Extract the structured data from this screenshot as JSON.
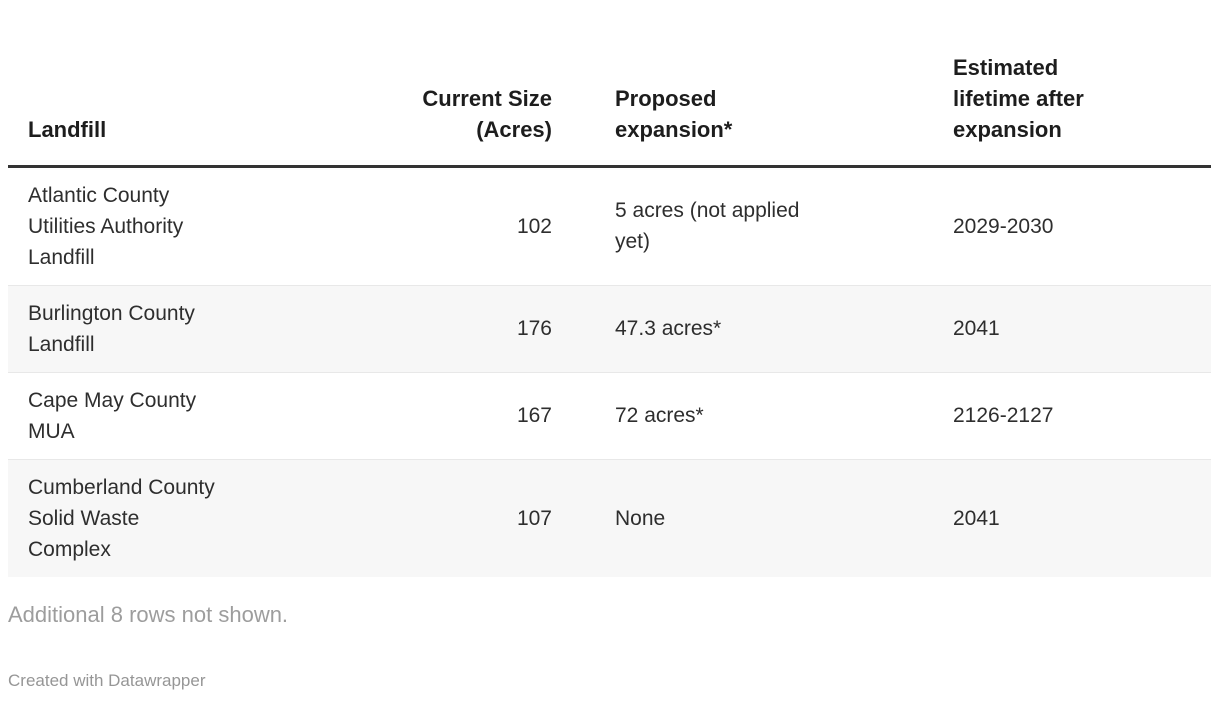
{
  "table": {
    "columns": [
      {
        "label": [
          "Landfill"
        ],
        "align": "left"
      },
      {
        "label": [
          "Current Size",
          "(Acres)"
        ],
        "align": "right"
      },
      {
        "label": [
          "Proposed",
          "expansion*"
        ],
        "align": "left"
      },
      {
        "label": [
          "Estimated",
          "lifetime after",
          "expansion"
        ],
        "align": "left"
      }
    ],
    "rows": [
      {
        "landfill": [
          "Atlantic County",
          "Utilities Authority",
          "Landfill"
        ],
        "current_size": "102",
        "proposed_expansion": [
          "5 acres (not applied",
          "yet)"
        ],
        "lifetime": "2029-2030"
      },
      {
        "landfill": [
          "Burlington County",
          "Landfill"
        ],
        "current_size": "176",
        "proposed_expansion": "47.3 acres*",
        "lifetime": "2041"
      },
      {
        "landfill": [
          "Cape May County",
          "MUA"
        ],
        "current_size": "167",
        "proposed_expansion": "72 acres*",
        "lifetime": "2126-2127"
      },
      {
        "landfill": [
          "Cumberland County",
          "Solid Waste",
          "Complex"
        ],
        "current_size": "107",
        "proposed_expansion": "None",
        "lifetime": "2041"
      }
    ]
  },
  "footer": {
    "rows_note": "Additional 8 rows not shown.",
    "attribution": "Created with Datawrapper"
  },
  "colors": {
    "header_rule": "#333333",
    "header_text": "#1d1d1d",
    "body_text": "#2e2e2e",
    "stripe_background": "#f7f7f7",
    "row_divider": "#e8e8e8",
    "muted_text": "#9d9d9d"
  },
  "chart_data": {
    "type": "table",
    "columns": [
      "Landfill",
      "Current Size (Acres)",
      "Proposed expansion*",
      "Estimated lifetime after expansion"
    ],
    "rows": [
      [
        "Atlantic County Utilities Authority Landfill",
        102,
        "5 acres (not applied yet)",
        "2029-2030"
      ],
      [
        "Burlington County Landfill",
        176,
        "47.3 acres*",
        "2041"
      ],
      [
        "Cape May County MUA",
        167,
        "72 acres*",
        "2126-2127"
      ],
      [
        "Cumberland County Solid Waste Complex",
        107,
        "None",
        "2041"
      ]
    ],
    "note": "Additional 8 rows not shown.",
    "attribution": "Created with Datawrapper",
    "layout_hints": {
      "zebra_striping": true,
      "numeric_column_right_aligned": "Current Size (Acres)",
      "header_bottom_aligned": true
    }
  }
}
